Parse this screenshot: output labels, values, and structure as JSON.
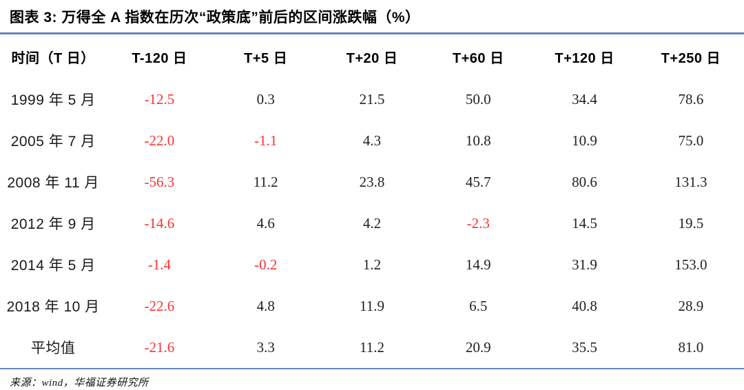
{
  "figure": {
    "title": "图表 3: 万得全 A 指数在历次“政策底”前后的区间涨跌幅（%）",
    "source": "来源：wind，华福证券研究所"
  },
  "colors": {
    "accent_rule_blue": "#6386c2",
    "negative_value_red": "#fa3232",
    "text_black": "#111111"
  },
  "chart_data": {
    "type": "table",
    "title": "图表 3: 万得全 A 指数在历次“政策底”前后的区间涨跌幅（%）",
    "columns": [
      "时间（T 日）",
      "T-120 日",
      "T+5 日",
      "T+20 日",
      "T+60 日",
      "T+120 日",
      "T+250 日"
    ],
    "rows": [
      {
        "label": "1999 年 5 月",
        "values": [
          -12.5,
          0.3,
          21.5,
          50.0,
          34.4,
          78.6
        ]
      },
      {
        "label": "2005 年 7 月",
        "values": [
          -22.0,
          -1.1,
          4.3,
          10.8,
          10.9,
          75.0
        ]
      },
      {
        "label": "2008 年 11 月",
        "values": [
          -56.3,
          11.2,
          23.8,
          45.7,
          80.6,
          131.3
        ]
      },
      {
        "label": "2012 年 9 月",
        "values": [
          -14.6,
          4.6,
          4.2,
          -2.3,
          14.5,
          19.5
        ]
      },
      {
        "label": "2014 年 5 月",
        "values": [
          -1.4,
          -0.2,
          1.2,
          14.9,
          31.9,
          153.0
        ]
      },
      {
        "label": "2018 年 10 月",
        "values": [
          -22.6,
          4.8,
          11.9,
          6.5,
          40.8,
          28.9
        ]
      },
      {
        "label": "平均值",
        "values": [
          -21.6,
          3.3,
          11.2,
          20.9,
          35.5,
          81.0
        ]
      }
    ],
    "average_row_label": "平均值",
    "value_format": "one_decimal_percent_points",
    "negative_values_shown_in_red": true,
    "source": "来源：wind，华福证券研究所"
  }
}
